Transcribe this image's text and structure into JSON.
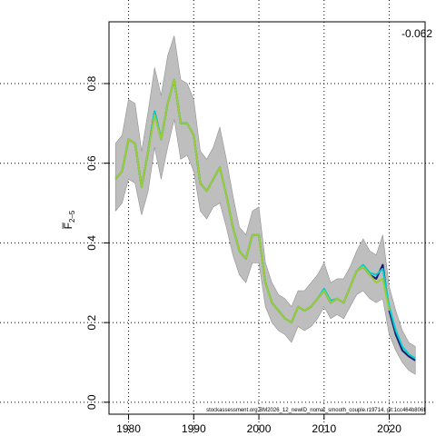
{
  "chart_data": {
    "type": "line",
    "title": "",
    "xlabel": "",
    "ylabel": "F̅",
    "ylabel_sub": "2–5",
    "corner_value": "-0.062",
    "footnote": "stockassessment.org.BM2026_12_newID_nomat_smooth_couple.r19714, git:1cc464b806f",
    "xlim": [
      1977,
      2025.5
    ],
    "ylim": [
      -0.03,
      0.955
    ],
    "x_ticks": [
      1980,
      1990,
      2000,
      2010,
      2020
    ],
    "y_ticks": [
      0.0,
      0.2,
      0.4,
      0.6,
      0.8
    ],
    "y_tick_labels": [
      "0.0",
      "0.2",
      "0.4",
      "0.6",
      "0.8"
    ],
    "grid": true,
    "colors": {
      "ci": "#bebebe",
      "ci_edge": "#909090",
      "series_main": "#9acd32",
      "series_alt": "#00ced1",
      "series_navy": "#191970"
    },
    "series": [
      {
        "role": "ci",
        "x": [
          1978,
          1979,
          1980,
          1981,
          1982,
          1983,
          1984,
          1985,
          1986,
          1987,
          1988,
          1989,
          1990,
          1991,
          1992,
          1993,
          1994,
          1995,
          1996,
          1997,
          1998,
          1999,
          2000,
          2001,
          2002,
          2003,
          2004,
          2005,
          2006,
          2007,
          2008,
          2009,
          2010,
          2011,
          2012,
          2013,
          2014,
          2015,
          2016,
          2017,
          2018,
          2019,
          2020,
          2021,
          2022,
          2023,
          2024
        ],
        "lower": [
          0.48,
          0.5,
          0.56,
          0.55,
          0.47,
          0.53,
          0.64,
          0.56,
          0.64,
          0.71,
          0.61,
          0.62,
          0.58,
          0.48,
          0.46,
          0.49,
          0.5,
          0.44,
          0.37,
          0.32,
          0.3,
          0.35,
          0.35,
          0.24,
          0.2,
          0.18,
          0.17,
          0.15,
          0.19,
          0.18,
          0.19,
          0.21,
          0.24,
          0.21,
          0.22,
          0.21,
          0.24,
          0.27,
          0.28,
          0.26,
          0.25,
          0.26,
          0.17,
          0.13,
          0.1,
          0.08,
          0.07
        ],
        "upper": [
          0.65,
          0.67,
          0.76,
          0.75,
          0.63,
          0.73,
          0.84,
          0.77,
          0.87,
          0.92,
          0.81,
          0.8,
          0.76,
          0.63,
          0.61,
          0.64,
          0.69,
          0.61,
          0.52,
          0.44,
          0.42,
          0.48,
          0.49,
          0.35,
          0.3,
          0.27,
          0.26,
          0.24,
          0.28,
          0.28,
          0.3,
          0.32,
          0.35,
          0.3,
          0.31,
          0.31,
          0.34,
          0.38,
          0.41,
          0.38,
          0.37,
          0.42,
          0.29,
          0.23,
          0.18,
          0.15,
          0.14
        ]
      },
      {
        "role": "line",
        "color": "navy",
        "width": 2,
        "x": [
          1978,
          1979,
          1980,
          1981,
          1982,
          1983,
          1984,
          1985,
          1986,
          1987,
          1988,
          1989,
          1990,
          1991,
          1992,
          1993,
          1994,
          1995,
          1996,
          1997,
          1998,
          1999,
          2000,
          2001,
          2002,
          2003,
          2004,
          2005,
          2006,
          2007,
          2008,
          2009,
          2010,
          2011,
          2012,
          2013,
          2014,
          2015,
          2016,
          2017,
          2018,
          2019,
          2020,
          2021,
          2022,
          2023,
          2024
        ],
        "y": [
          0.56,
          0.58,
          0.66,
          0.65,
          0.54,
          0.63,
          0.73,
          0.66,
          0.75,
          0.81,
          0.7,
          0.7,
          0.67,
          0.55,
          0.53,
          0.56,
          0.59,
          0.52,
          0.44,
          0.38,
          0.36,
          0.42,
          0.42,
          0.3,
          0.25,
          0.23,
          0.21,
          0.2,
          0.24,
          0.23,
          0.24,
          0.26,
          0.28,
          0.25,
          0.26,
          0.25,
          0.29,
          0.33,
          0.34,
          0.32,
          0.31,
          0.345,
          0.23,
          0.17,
          0.13,
          0.115,
          0.105
        ]
      },
      {
        "role": "line",
        "color": "alt",
        "width": 2,
        "x": [
          1978,
          1979,
          1980,
          1981,
          1982,
          1983,
          1984,
          1985,
          1986,
          1987,
          1988,
          1989,
          1990,
          1991,
          1992,
          1993,
          1994,
          1995,
          1996,
          1997,
          1998,
          1999,
          2000,
          2001,
          2002,
          2003,
          2004,
          2005,
          2006,
          2007,
          2008,
          2009,
          2010,
          2011,
          2012,
          2013,
          2014,
          2015,
          2016,
          2017,
          2018,
          2019,
          2020,
          2021,
          2022,
          2023,
          2024
        ],
        "y": [
          0.56,
          0.58,
          0.66,
          0.65,
          0.54,
          0.63,
          0.73,
          0.66,
          0.75,
          0.81,
          0.7,
          0.7,
          0.67,
          0.55,
          0.53,
          0.56,
          0.59,
          0.52,
          0.44,
          0.38,
          0.36,
          0.42,
          0.42,
          0.3,
          0.25,
          0.23,
          0.21,
          0.2,
          0.24,
          0.23,
          0.24,
          0.26,
          0.285,
          0.255,
          0.26,
          0.25,
          0.29,
          0.33,
          0.345,
          0.325,
          0.32,
          0.335,
          0.24,
          0.18,
          0.14,
          0.12,
          0.11
        ]
      },
      {
        "role": "line",
        "color": "main",
        "width": 2,
        "x": [
          1978,
          1979,
          1980,
          1981,
          1982,
          1983,
          1984,
          1985,
          1986,
          1987,
          1988,
          1989,
          1990,
          1991,
          1992,
          1993,
          1994,
          1995,
          1996,
          1997,
          1998,
          1999,
          2000,
          2001,
          2002,
          2003,
          2004,
          2005,
          2006,
          2007,
          2008,
          2009,
          2010,
          2011,
          2012,
          2013,
          2014,
          2015,
          2016,
          2017,
          2018,
          2019,
          2020
        ],
        "y": [
          0.56,
          0.58,
          0.66,
          0.65,
          0.54,
          0.63,
          0.72,
          0.66,
          0.75,
          0.81,
          0.7,
          0.7,
          0.67,
          0.55,
          0.53,
          0.56,
          0.59,
          0.52,
          0.44,
          0.38,
          0.36,
          0.42,
          0.42,
          0.3,
          0.25,
          0.23,
          0.21,
          0.2,
          0.24,
          0.23,
          0.24,
          0.26,
          0.28,
          0.25,
          0.26,
          0.25,
          0.29,
          0.33,
          0.34,
          0.32,
          0.3,
          0.31,
          0.23
        ]
      }
    ]
  }
}
